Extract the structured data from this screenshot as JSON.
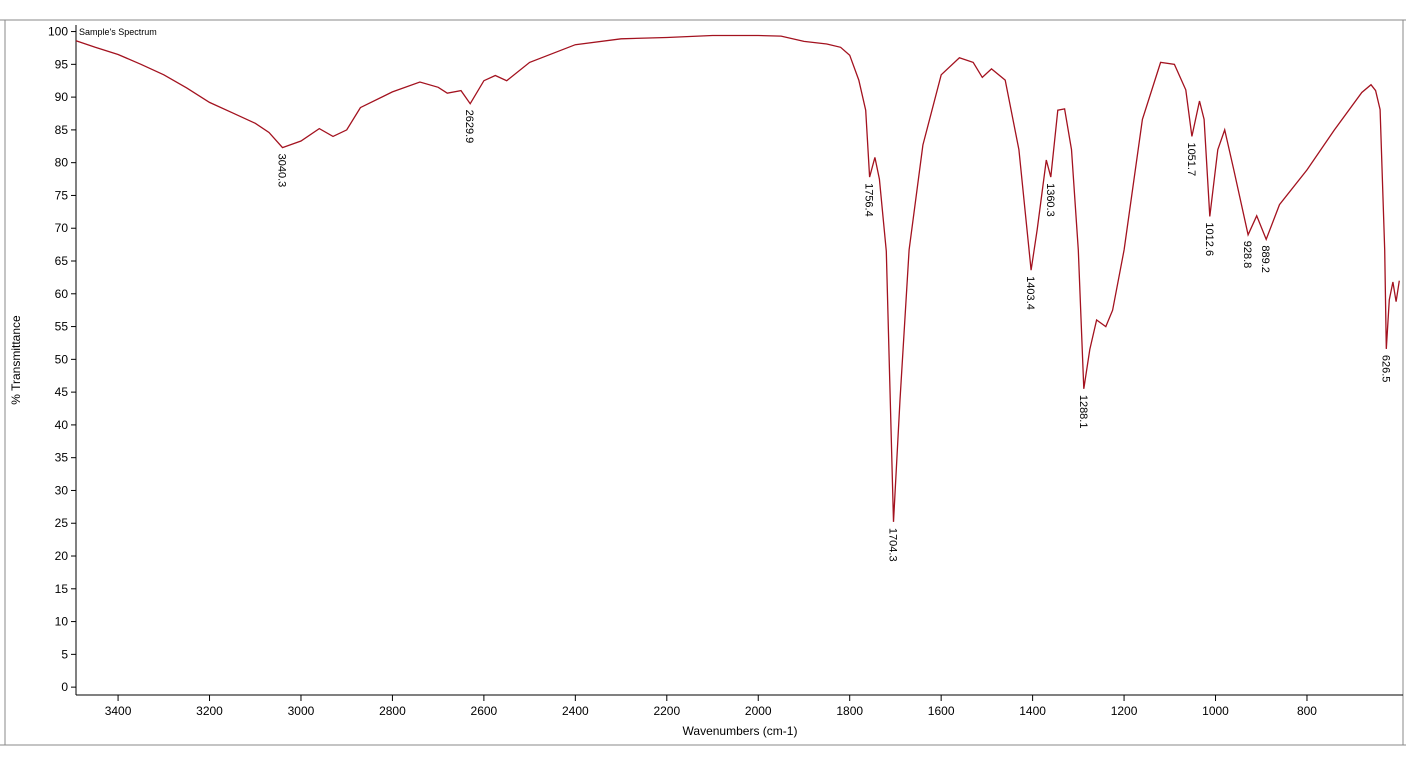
{
  "chart_data": {
    "type": "line",
    "legend_text": "Sample's Spectrum",
    "xlabel": "Wavenumbers (cm-1)",
    "ylabel": "% Transmittance",
    "xlim": [
      3492,
      590
    ],
    "ylim": [
      -1.2,
      101
    ],
    "xticks": [
      3400,
      3200,
      3000,
      2800,
      2600,
      2400,
      2200,
      2000,
      1800,
      1600,
      1400,
      1200,
      1000,
      800
    ],
    "yticks": [
      0,
      5,
      10,
      15,
      20,
      25,
      30,
      35,
      40,
      45,
      50,
      55,
      60,
      65,
      70,
      75,
      80,
      85,
      90,
      95,
      100
    ],
    "series": [
      {
        "name": "Sample's Spectrum",
        "color": "#a3121f",
        "x": [
          3492,
          3450,
          3400,
          3350,
          3300,
          3250,
          3200,
          3150,
          3100,
          3070,
          3040.3,
          3000,
          2960,
          2930,
          2900,
          2870,
          2800,
          2740,
          2700,
          2680,
          2650,
          2629.9,
          2600,
          2575,
          2550,
          2500,
          2400,
          2300,
          2200,
          2100,
          2000,
          1950,
          1900,
          1850,
          1820,
          1800,
          1780,
          1765,
          1756.4,
          1745,
          1735,
          1720,
          1704.3,
          1690,
          1670,
          1640,
          1600,
          1560,
          1530,
          1510,
          1490,
          1460,
          1430,
          1403.4,
          1390,
          1370,
          1360.3,
          1345,
          1330,
          1315,
          1300,
          1288.1,
          1275,
          1260,
          1240,
          1225,
          1200,
          1160,
          1120,
          1090,
          1065,
          1051.7,
          1035,
          1025,
          1012.6,
          995,
          980,
          960,
          928.8,
          910,
          889.2,
          860,
          800,
          740,
          680,
          660,
          650,
          640,
          630,
          626.5,
          620,
          612,
          605,
          598
        ],
        "values": [
          98.6,
          97.6,
          96.5,
          95,
          93.4,
          91.4,
          89.2,
          87.6,
          86,
          84.6,
          82.3,
          83.3,
          85.2,
          84,
          85,
          88.4,
          90.8,
          92.3,
          91.5,
          90.6,
          91,
          89,
          92.5,
          93.3,
          92.5,
          95.3,
          98,
          98.9,
          99.1,
          99.4,
          99.4,
          99.3,
          98.5,
          98.1,
          97.6,
          96.4,
          92.6,
          88,
          77.8,
          80.8,
          77.5,
          66.5,
          25.2,
          43.8,
          66.7,
          82.7,
          93.4,
          96,
          95.3,
          93,
          94.3,
          92.6,
          82,
          63.6,
          69.8,
          80.4,
          77.8,
          88,
          88.2,
          82,
          66.7,
          45.5,
          51.5,
          56,
          55,
          57.5,
          66.7,
          86.6,
          95.3,
          95,
          91.1,
          84,
          89.4,
          86.6,
          71.8,
          82,
          85,
          78.9,
          69,
          71.9,
          68.3,
          73.6,
          78.9,
          85,
          90.7,
          91.9,
          91,
          88.1,
          66.7,
          51.6,
          59.1,
          61.8,
          58.8,
          62
        ]
      }
    ],
    "peaks": [
      3040.3,
      2629.9,
      1756.4,
      1704.3,
      1403.4,
      1360.3,
      1288.1,
      1051.7,
      1012.6,
      928.8,
      889.2,
      626.5
    ]
  }
}
